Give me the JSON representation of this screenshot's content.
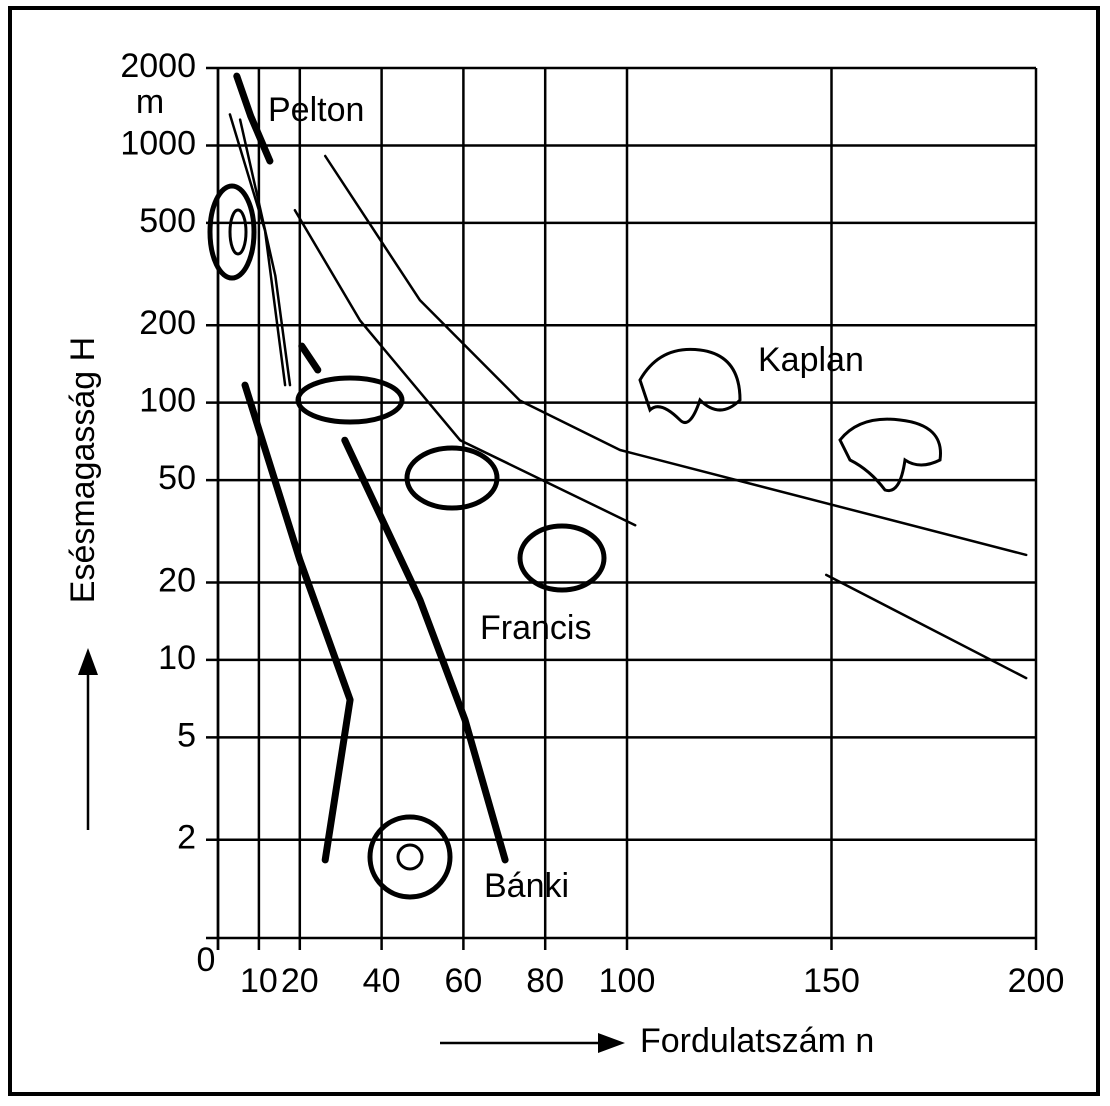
{
  "chart_data": {
    "type": "line",
    "x_label": "Fordulatszám n",
    "y_label": "Esésmagasság H",
    "y_unit": "m",
    "xlim": [
      0,
      200
    ],
    "xticks": [
      0,
      10,
      20,
      40,
      60,
      80,
      100,
      150,
      200
    ],
    "ylim": [
      0.83,
      2000
    ],
    "yticks": [
      2,
      5,
      10,
      20,
      50,
      100,
      200,
      500,
      1000,
      2000
    ],
    "y_log": true,
    "grid": true,
    "color": "#000000",
    "annotations": [
      "Pelton",
      "Kaplan",
      "Francis",
      "Bánki"
    ],
    "series": [
      {
        "line_width": 7,
        "x": [
          4.6,
          8,
          12.7
        ],
        "values": [
          1860,
          1300,
          870
        ]
      },
      {
        "line_width": 2.5,
        "x": [
          2.9,
          11.5,
          16.4
        ],
        "values": [
          1320,
          467,
          117
        ]
      },
      {
        "line_width": 2.5,
        "x": [
          5.4,
          14,
          17.6
        ],
        "values": [
          1260,
          312,
          117
        ]
      },
      {
        "line_width": 2.5,
        "x": [
          26.2,
          49.4,
          73.8,
          98.3,
          197.6
        ],
        "values": [
          910,
          250,
          102,
          65.5,
          25.6
        ]
      },
      {
        "line_width": 2.5,
        "x": [
          18.8,
          34.7,
          59.2,
          102,
          108,
          148.7,
          197.6
        ],
        "values": [
          560,
          209,
          71.5,
          33.4,
          null,
          21.4,
          8.5
        ]
      },
      {
        "line_width": 7,
        "x": [
          6.6,
          20,
          32.3,
          26.2
        ],
        "values": [
          117,
          24.5,
          7.0,
          1.67
        ]
      },
      {
        "line_width": 7,
        "x": [
          20.5,
          24.4,
          28,
          31,
          49.4,
          60.4,
          70.2
        ],
        "values": [
          166,
          134,
          null,
          71.5,
          17.1,
          5.85,
          1.67
        ]
      }
    ]
  }
}
